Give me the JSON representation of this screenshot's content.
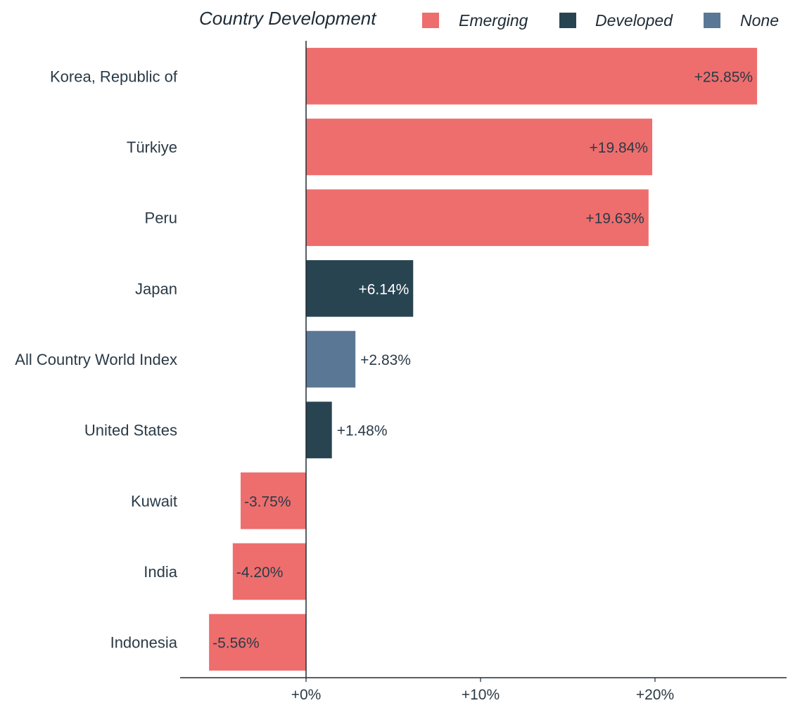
{
  "chart_data": {
    "type": "bar",
    "orientation": "horizontal",
    "legend": {
      "title": "Country Development",
      "placement": "top-right",
      "items": [
        {
          "name": "Emerging",
          "color": "#ee6e6d"
        },
        {
          "name": "Developed",
          "color": "#284451"
        },
        {
          "name": "None",
          "color": "#5a7895"
        }
      ]
    },
    "categories": [
      "Korea, Republic of",
      "Türkiye",
      "Peru",
      "Japan",
      "All Country World Index",
      "United States",
      "Kuwait",
      "India",
      "Indonesia"
    ],
    "values": [
      25.85,
      19.84,
      19.63,
      6.14,
      2.83,
      1.48,
      -3.75,
      -4.2,
      -5.56
    ],
    "value_labels": [
      "+25.85%",
      "+19.84%",
      "+19.63%",
      "+6.14%",
      "+2.83%",
      "+1.48%",
      "-3.75%",
      "-4.20%",
      "-5.56%"
    ],
    "groups": [
      "Emerging",
      "Emerging",
      "Emerging",
      "Developed",
      "None",
      "Developed",
      "Emerging",
      "Emerging",
      "Emerging"
    ],
    "x_ticks": [
      0,
      10,
      20
    ],
    "x_tick_labels": [
      "+0%",
      "+10%",
      "+20%"
    ],
    "xlim": [
      -7.2,
      27.5
    ],
    "xlabel": "",
    "ylabel": "",
    "grid": false
  }
}
